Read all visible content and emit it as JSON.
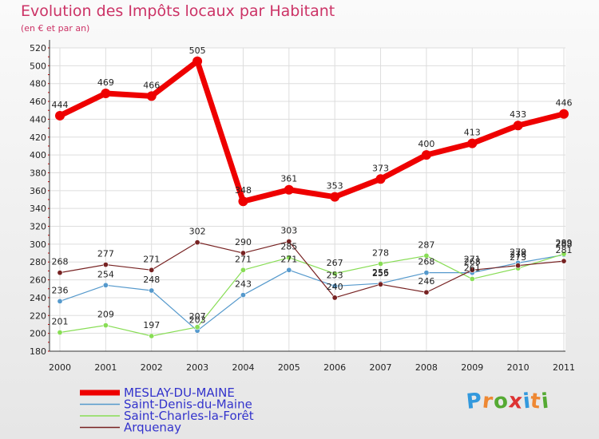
{
  "chart_data": {
    "type": "line",
    "title": "Evolution des Impôts locaux par Habitant",
    "subtitle": "(en € et par an)",
    "xlabel": "",
    "ylabel": "",
    "ylim": [
      180,
      520
    ],
    "yticks": [
      180,
      200,
      220,
      240,
      260,
      280,
      300,
      320,
      340,
      360,
      380,
      400,
      420,
      440,
      460,
      480,
      500,
      520
    ],
    "x": [
      "2000",
      "2001",
      "2002",
      "2003",
      "2004",
      "2005",
      "2006",
      "2007",
      "2008",
      "2009",
      "2010",
      "2011"
    ],
    "series": [
      {
        "name": "MESLAY-DU-MAINE",
        "color": "#ee0000",
        "values": [
          444,
          469,
          466,
          505,
          348,
          361,
          353,
          373,
          400,
          413,
          433,
          446
        ]
      },
      {
        "name": "Saint-Denis-du-Maine",
        "color": "#5599cc",
        "values": [
          236,
          254,
          248,
          203,
          243,
          271,
          253,
          256,
          268,
          268,
          279,
          288
        ]
      },
      {
        "name": "Saint-Charles-la-Forêt",
        "color": "#88dd55",
        "values": [
          201,
          209,
          197,
          207,
          271,
          285,
          267,
          278,
          287,
          261,
          273,
          289
        ]
      },
      {
        "name": "Arquenay",
        "color": "#772222",
        "values": [
          268,
          277,
          271,
          302,
          290,
          303,
          240,
          255,
          246,
          271,
          276,
          281
        ]
      }
    ]
  },
  "brand": {
    "letters": [
      "P",
      "r",
      "o",
      "x",
      "i",
      "t",
      "i"
    ]
  }
}
